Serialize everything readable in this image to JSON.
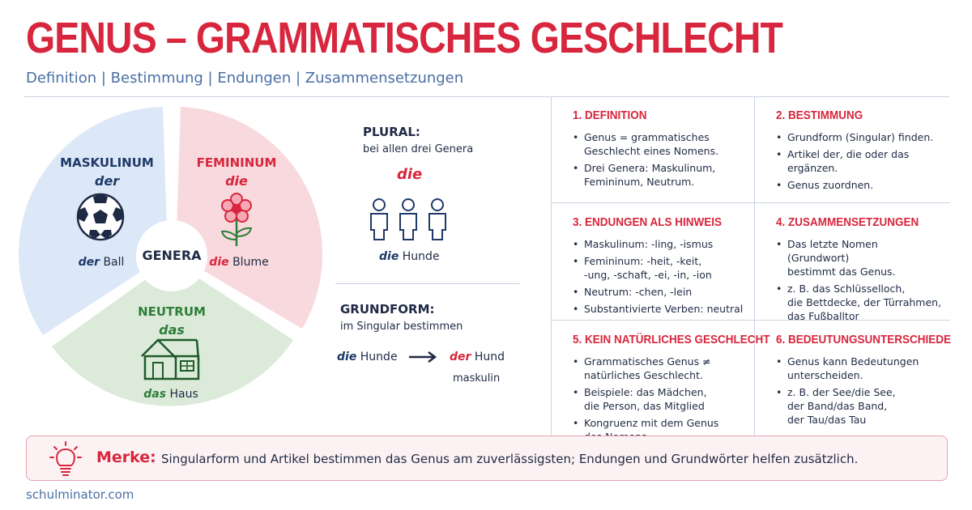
{
  "header": {
    "title": "GENUS – GRAMMATISCHES GESCHLECHT",
    "subtitle": "Definition | Bestimmung | Endungen | Zusammensetzungen"
  },
  "genera": {
    "center": "GENERA",
    "maskulinum": {
      "name": "MASKULINUM",
      "article": "der",
      "example_article": "der",
      "example_noun": "Ball",
      "color": "#1f3a68",
      "bg": "#dce7f7"
    },
    "femininum": {
      "name": "FEMININUM",
      "article": "die",
      "example_article": "die",
      "example_noun": "Blume",
      "color": "#d7263d",
      "bg": "#f8d9de"
    },
    "neutrum": {
      "name": "NEUTRUM",
      "article": "das",
      "example_article": "das",
      "example_noun": "Haus",
      "color": "#2f7d3a",
      "bg": "#dcebd9"
    }
  },
  "plural": {
    "heading": "PLURAL:",
    "subheading": "bei allen drei Genera",
    "article": "die",
    "example_article": "die",
    "example_noun": "Hunde"
  },
  "grundform": {
    "heading": "GRUNDFORM:",
    "subheading": "im Singular bestimmen",
    "from_article": "die",
    "from_noun": "Hunde",
    "to_article": "der",
    "to_noun": "Hund",
    "to_gender": "maskulin"
  },
  "sections": [
    {
      "title": "1. DEFINITION",
      "items": [
        "Genus = grammatisches\nGeschlecht eines Nomens.",
        "Drei Genera: Maskulinum,\nFemininum, Neutrum."
      ]
    },
    {
      "title": "2. BESTIMMUNG",
      "items": [
        "Grundform (Singular) finden.",
        "Artikel der, die oder das\nergänzen.",
        "Genus zuordnen."
      ]
    },
    {
      "title": "3. ENDUNGEN ALS HINWEIS",
      "items": [
        "Maskulinum:  -ling, -ismus",
        "Femininum: -heit, -keit,\n-ung, -schaft, -ei, -in, -ion",
        "Neutrum:  -chen, -lein",
        "Substantivierte Verben: neutral"
      ]
    },
    {
      "title": "4. ZUSAMMENSETZUNGEN",
      "items": [
        "Das letzte Nomen (Grundwort)\nbestimmt das Genus.",
        "z. B. das Schlüsselloch,\ndie Bettdecke, der Türrahmen,\ndas Fußballtor"
      ]
    },
    {
      "title": "5. KEIN NATÜRLICHES GESCHLECHT",
      "items": [
        "Grammatisches Genus ≠\nnatürliches Geschlecht.",
        "Beispiele: das Mädchen,\ndie Person, das Mitglied",
        "Kongruenz mit dem Genus\ndes Nomens"
      ]
    },
    {
      "title": "6. BEDEUTUNGSUNTERSCHIEDE",
      "items": [
        "Genus kann Bedeutungen\nunterscheiden.",
        "z. B. der See/die See,\nder Band/das Band,\nder Tau/das Tau"
      ]
    }
  ],
  "merke": {
    "label": "Merke:",
    "text": "Singularform und Artikel bestimmen das Genus am zuverlässigsten; Endungen und Grundwörter helfen zusätzlich."
  },
  "footer": "schulminator.com",
  "icons": [
    "soccer-ball-icon",
    "flower-icon",
    "house-icon",
    "people-icon",
    "arrow-right-icon",
    "lightbulb-icon"
  ],
  "accent": "#d7263d"
}
